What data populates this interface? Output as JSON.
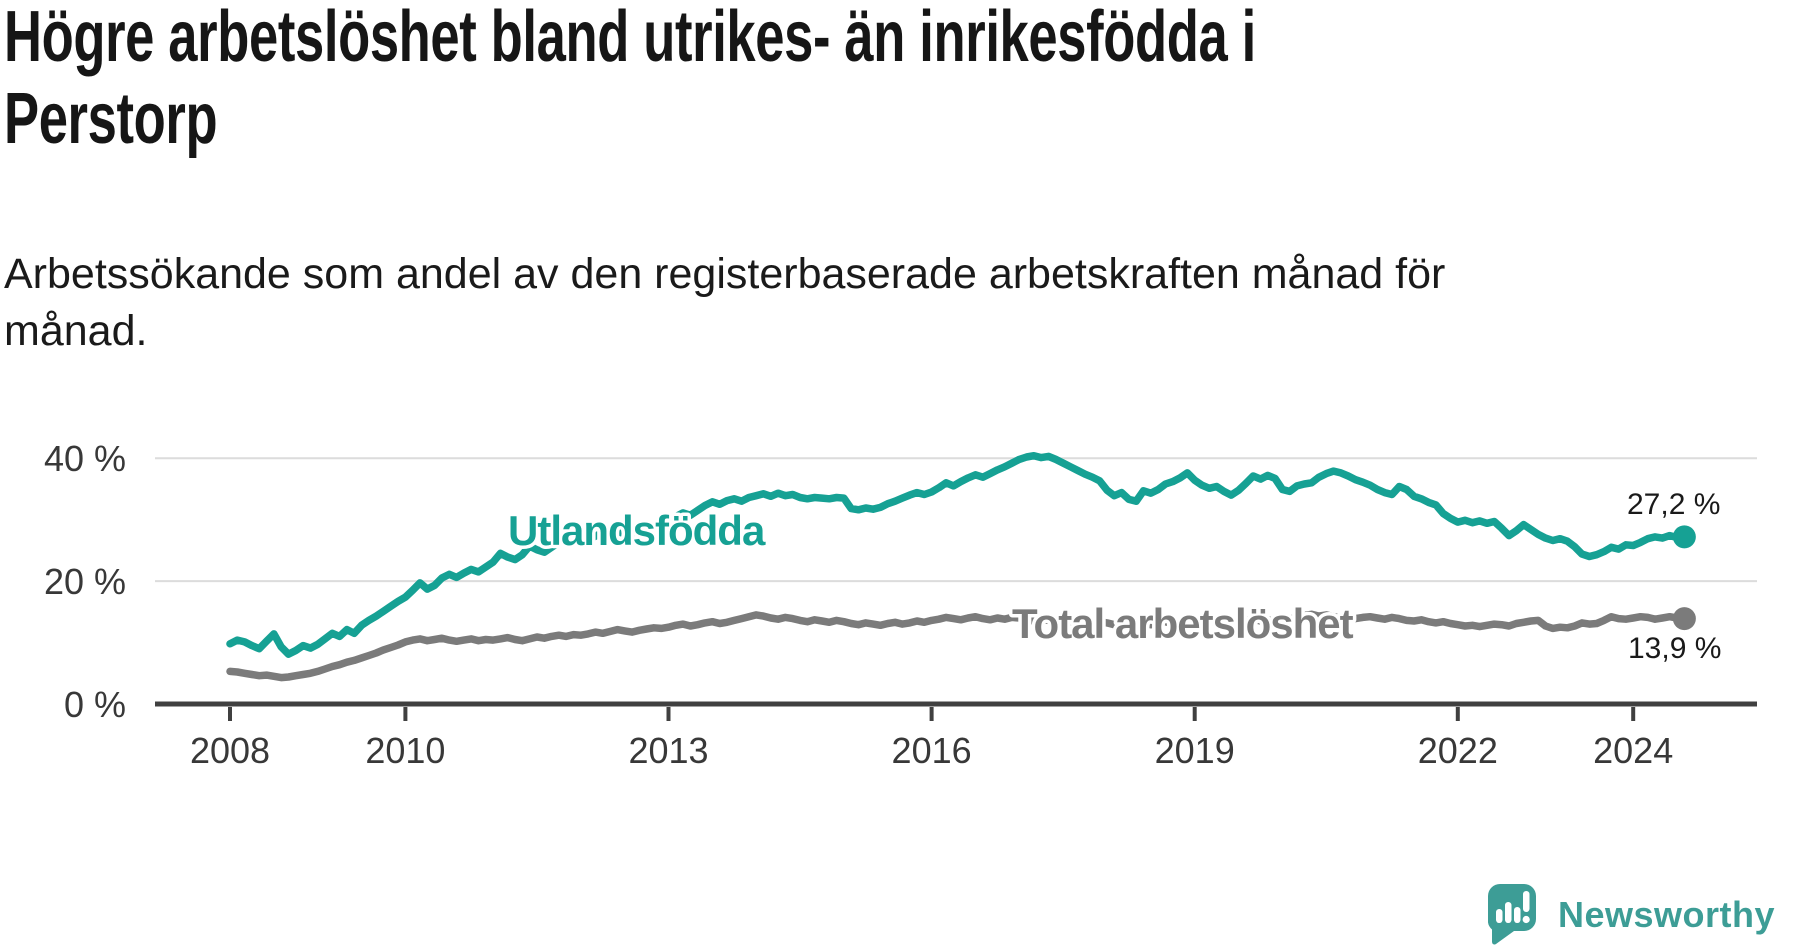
{
  "header": {
    "title_lines": [
      "Högre arbetslöshet bland utrikes- än inrikesfödda i",
      "Perstorp"
    ],
    "subtitle_lines": [
      "Arbetssökande som andel av den registerbaserade arbetskraften månad för",
      "månad."
    ]
  },
  "footer": {
    "brand": "Newsworthy",
    "logo_icon": "newsworthy-speech-bubble-chart-icon"
  },
  "colors": {
    "foreign_born": "#16a194",
    "total": "#7b7b7b",
    "grid": "#dcdcdc",
    "axis": "#404040",
    "axis_text": "#383838",
    "end_label_text": "#1a1a1a",
    "brand": "#3d9d96",
    "background": "#ffffff"
  },
  "chart_data": {
    "type": "line",
    "x_unit": "month",
    "x_start": "2008-01",
    "x_end": "2024-08",
    "x_tick_years": [
      2008,
      2010,
      2013,
      2016,
      2019,
      2022,
      2024
    ],
    "y_ticks": [
      0,
      20,
      40
    ],
    "y_tick_format": "{v} %",
    "ylim": [
      0,
      44
    ],
    "grid": "horizontal-only",
    "legend_position": "inline-labels",
    "series": [
      {
        "name": "Utlandsfödda",
        "color": "#16a194",
        "end_value": 27.2,
        "end_label": "27,2 %",
        "values": [
          9.8,
          10.4,
          10.1,
          9.5,
          9.0,
          10.2,
          11.4,
          9.3,
          8.1,
          8.7,
          9.5,
          9.1,
          9.7,
          10.6,
          11.5,
          11.0,
          12.1,
          11.5,
          12.8,
          13.6,
          14.3,
          15.1,
          15.9,
          16.7,
          17.4,
          18.5,
          19.7,
          18.7,
          19.3,
          20.5,
          21.1,
          20.6,
          21.3,
          21.9,
          21.5,
          22.3,
          23.1,
          24.5,
          23.9,
          23.5,
          24.3,
          25.7,
          25.1,
          24.7,
          25.5,
          26.3,
          26.9,
          27.5,
          27.1,
          26.7,
          27.3,
          27.9,
          27.5,
          28.1,
          27.7,
          27.3,
          27.9,
          28.5,
          28.9,
          29.3,
          29.7,
          30.5,
          31.1,
          30.7,
          31.5,
          32.3,
          32.9,
          32.5,
          33.1,
          33.4,
          33.0,
          33.6,
          33.9,
          34.2,
          33.8,
          34.3,
          33.9,
          34.1,
          33.6,
          33.4,
          33.6,
          33.5,
          33.4,
          33.6,
          33.5,
          31.8,
          31.6,
          31.9,
          31.7,
          32.0,
          32.6,
          33.0,
          33.5,
          34.0,
          34.4,
          34.1,
          34.5,
          35.2,
          36.0,
          35.5,
          36.2,
          36.8,
          37.3,
          36.9,
          37.5,
          38.1,
          38.6,
          39.2,
          39.8,
          40.2,
          40.4,
          40.1,
          40.3,
          39.8,
          39.2,
          38.6,
          38.0,
          37.4,
          36.9,
          36.3,
          34.8,
          33.9,
          34.4,
          33.3,
          33.0,
          34.7,
          34.3,
          34.9,
          35.8,
          36.2,
          36.8,
          37.6,
          36.4,
          35.6,
          35.1,
          35.4,
          34.6,
          34.0,
          34.8,
          35.9,
          37.1,
          36.6,
          37.2,
          36.7,
          34.9,
          34.6,
          35.5,
          35.8,
          36.0,
          36.9,
          37.5,
          37.9,
          37.6,
          37.1,
          36.5,
          36.1,
          35.6,
          34.9,
          34.4,
          34.1,
          35.4,
          34.9,
          33.8,
          33.4,
          32.8,
          32.4,
          31.0,
          30.2,
          29.6,
          29.9,
          29.5,
          29.8,
          29.4,
          29.7,
          28.6,
          27.4,
          28.2,
          29.2,
          28.4,
          27.6,
          27.0,
          26.6,
          26.9,
          26.5,
          25.6,
          24.4,
          24.0,
          24.3,
          24.8,
          25.5,
          25.2,
          25.9,
          25.8,
          26.3,
          26.9,
          27.2,
          27.0,
          27.4,
          27.1,
          27.2
        ]
      },
      {
        "name": "Total arbetslöshet",
        "color": "#7b7b7b",
        "end_value": 13.9,
        "end_label": "13,9 %",
        "values": [
          5.3,
          5.2,
          5.0,
          4.8,
          4.6,
          4.7,
          4.5,
          4.3,
          4.4,
          4.6,
          4.8,
          5.0,
          5.3,
          5.7,
          6.1,
          6.4,
          6.8,
          7.1,
          7.5,
          7.9,
          8.3,
          8.8,
          9.2,
          9.6,
          10.1,
          10.4,
          10.6,
          10.3,
          10.5,
          10.7,
          10.4,
          10.2,
          10.4,
          10.6,
          10.3,
          10.5,
          10.4,
          10.6,
          10.8,
          10.5,
          10.3,
          10.6,
          10.9,
          10.7,
          11.0,
          11.2,
          11.0,
          11.3,
          11.2,
          11.4,
          11.7,
          11.5,
          11.8,
          12.1,
          11.9,
          11.7,
          12.0,
          12.2,
          12.4,
          12.3,
          12.5,
          12.8,
          13.0,
          12.7,
          12.9,
          13.2,
          13.4,
          13.1,
          13.3,
          13.6,
          13.9,
          14.2,
          14.5,
          14.3,
          14.0,
          13.8,
          14.1,
          13.9,
          13.6,
          13.4,
          13.7,
          13.5,
          13.3,
          13.6,
          13.4,
          13.1,
          12.9,
          13.2,
          13.0,
          12.8,
          13.1,
          13.3,
          13.0,
          13.2,
          13.5,
          13.3,
          13.6,
          13.8,
          14.1,
          13.9,
          13.7,
          14.0,
          14.2,
          13.9,
          13.7,
          14.0,
          13.8,
          14.1,
          14.0,
          13.7,
          13.5,
          13.8,
          13.6,
          13.3,
          13.1,
          13.4,
          13.2,
          12.9,
          13.1,
          13.4,
          13.2,
          12.9,
          12.7,
          13.0,
          12.8,
          13.1,
          12.9,
          13.2,
          13.4,
          13.1,
          13.4,
          13.7,
          14.0,
          13.7,
          13.5,
          13.2,
          13.4,
          13.1,
          13.3,
          13.6,
          13.8,
          13.5,
          13.7,
          13.4,
          13.6,
          13.8,
          14.1,
          14.4,
          14.6,
          14.3,
          14.5,
          14.2,
          14.0,
          14.2,
          13.9,
          14.1,
          14.2,
          14.0,
          13.8,
          14.1,
          13.9,
          13.6,
          13.5,
          13.7,
          13.4,
          13.2,
          13.4,
          13.1,
          12.9,
          12.7,
          12.8,
          12.6,
          12.8,
          13.0,
          12.9,
          12.7,
          13.1,
          13.3,
          13.5,
          13.6,
          12.7,
          12.3,
          12.5,
          12.4,
          12.7,
          13.2,
          13.0,
          13.1,
          13.6,
          14.2,
          13.9,
          13.8,
          14.0,
          14.2,
          14.1,
          13.8,
          14.0,
          14.2,
          14.0,
          13.9
        ]
      }
    ]
  }
}
